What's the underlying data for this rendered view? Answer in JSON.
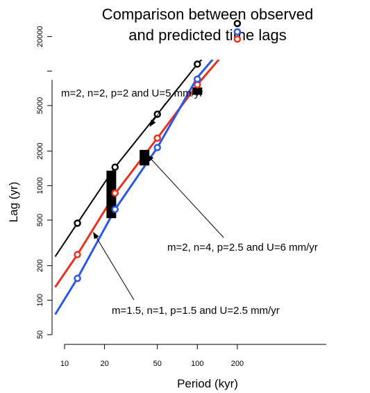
{
  "chart_data": {
    "type": "line",
    "title": [
      "Comparison between observed",
      "and predicted time lags"
    ],
    "xlabel": "Period (kyr)",
    "ylabel": "Lag (yr)",
    "xscale": "log",
    "yscale": "log",
    "xlim": [
      8.5,
      330
    ],
    "ylim": [
      38,
      30000
    ],
    "x_ticks": [
      10,
      20,
      50,
      100,
      200
    ],
    "x_tick_labels": [
      "10",
      "20",
      "50",
      "100",
      "200"
    ],
    "y_ticks": [
      50,
      100,
      200,
      500,
      1000,
      2000,
      5000,
      20000
    ],
    "y_tick_labels": [
      "50",
      "100",
      "200",
      "500",
      "1000",
      "2000",
      "5000",
      "20000"
    ],
    "y_minor_ticks": [
      10000
    ],
    "grid": false,
    "legend": "none",
    "series": [
      {
        "color": "#000000",
        "line_width": 2,
        "line": [
          [
            8.5,
            240
          ],
          [
            12.5,
            470
          ],
          [
            24,
            1450
          ],
          [
            50,
            4200
          ],
          [
            100,
            11500
          ],
          [
            200,
            27000
          ],
          [
            240,
            32000
          ]
        ],
        "points": [
          [
            12.5,
            470
          ],
          [
            24,
            1450
          ],
          [
            50,
            4200
          ],
          [
            100,
            11500
          ],
          [
            200,
            26000
          ]
        ]
      },
      {
        "color": "#e8321e",
        "line_width": 3,
        "line": [
          [
            8.5,
            130
          ],
          [
            12.5,
            250
          ],
          [
            24,
            850
          ],
          [
            50,
            2600
          ],
          [
            100,
            7600
          ],
          [
            200,
            19500
          ],
          [
            330,
            32000
          ]
        ],
        "points": [
          [
            12.5,
            250
          ],
          [
            24,
            860
          ],
          [
            50,
            2600
          ],
          [
            100,
            7600
          ],
          [
            200,
            19000
          ]
        ]
      },
      {
        "color": "#2b57e8",
        "line_width": 3,
        "line": [
          [
            8.5,
            75
          ],
          [
            12.5,
            155
          ],
          [
            24,
            620
          ],
          [
            50,
            2150
          ],
          [
            100,
            8800
          ],
          [
            200,
            22500
          ],
          [
            250,
            32000
          ]
        ],
        "points": [
          [
            12.5,
            155
          ],
          [
            24,
            620
          ],
          [
            50,
            2150
          ],
          [
            100,
            8500
          ],
          [
            200,
            22000
          ]
        ]
      }
    ],
    "observations": [
      {
        "x": 22.5,
        "y_low": 520,
        "y_high": 1350
      },
      {
        "x": 40,
        "y_low": 1500,
        "y_high": 2050
      },
      {
        "x": 100,
        "y_low": 6200,
        "y_high": 7200
      }
    ],
    "annotations": [
      {
        "text": "m=2, n=2, p=2 and U=5 mm/yr",
        "points_to": [
          44,
          3300
        ]
      },
      {
        "text": "m=2, n=4, p=2.5 and U=6 mm/yr",
        "points_to": [
          42,
          1850
        ]
      },
      {
        "text": "m=1.5, n=1, p=1.5 and U=2.5 mm/yr",
        "points_to": [
          16.5,
          390
        ]
      }
    ]
  }
}
